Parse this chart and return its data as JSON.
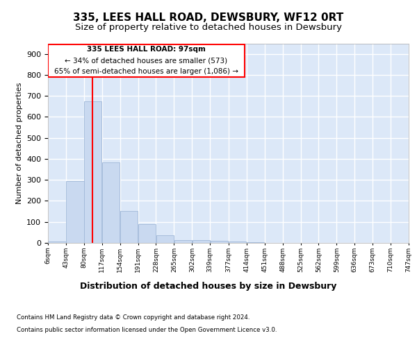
{
  "title1": "335, LEES HALL ROAD, DEWSBURY, WF12 0RT",
  "title2": "Size of property relative to detached houses in Dewsbury",
  "xlabel": "Distribution of detached houses by size in Dewsbury",
  "ylabel": "Number of detached properties",
  "footer1": "Contains HM Land Registry data © Crown copyright and database right 2024.",
  "footer2": "Contains public sector information licensed under the Open Government Licence v3.0.",
  "annotation_line1": "335 LEES HALL ROAD: 97sqm",
  "annotation_line2": "← 34% of detached houses are smaller (573)",
  "annotation_line3": "65% of semi-detached houses are larger (1,086) →",
  "bin_edges": [
    6,
    43,
    80,
    117,
    154,
    191,
    228,
    265,
    302,
    339,
    377,
    414,
    451,
    488,
    525,
    562,
    599,
    636,
    673,
    710,
    747
  ],
  "bar_heights": [
    5,
    295,
    673,
    383,
    153,
    90,
    35,
    12,
    12,
    10,
    5,
    2,
    1,
    0,
    0,
    0,
    0,
    0,
    0,
    0
  ],
  "bar_color": "#c9d9f0",
  "bar_edge_color": "#a0b8d8",
  "redline_x": 97,
  "ylim": [
    0,
    950
  ],
  "yticks": [
    0,
    100,
    200,
    300,
    400,
    500,
    600,
    700,
    800,
    900
  ],
  "background_color": "#ffffff",
  "plot_bg_color": "#dce8f8",
  "grid_color": "#ffffff",
  "title1_fontsize": 11,
  "title2_fontsize": 9.5,
  "xlabel_fontsize": 9,
  "ylabel_fontsize": 8
}
